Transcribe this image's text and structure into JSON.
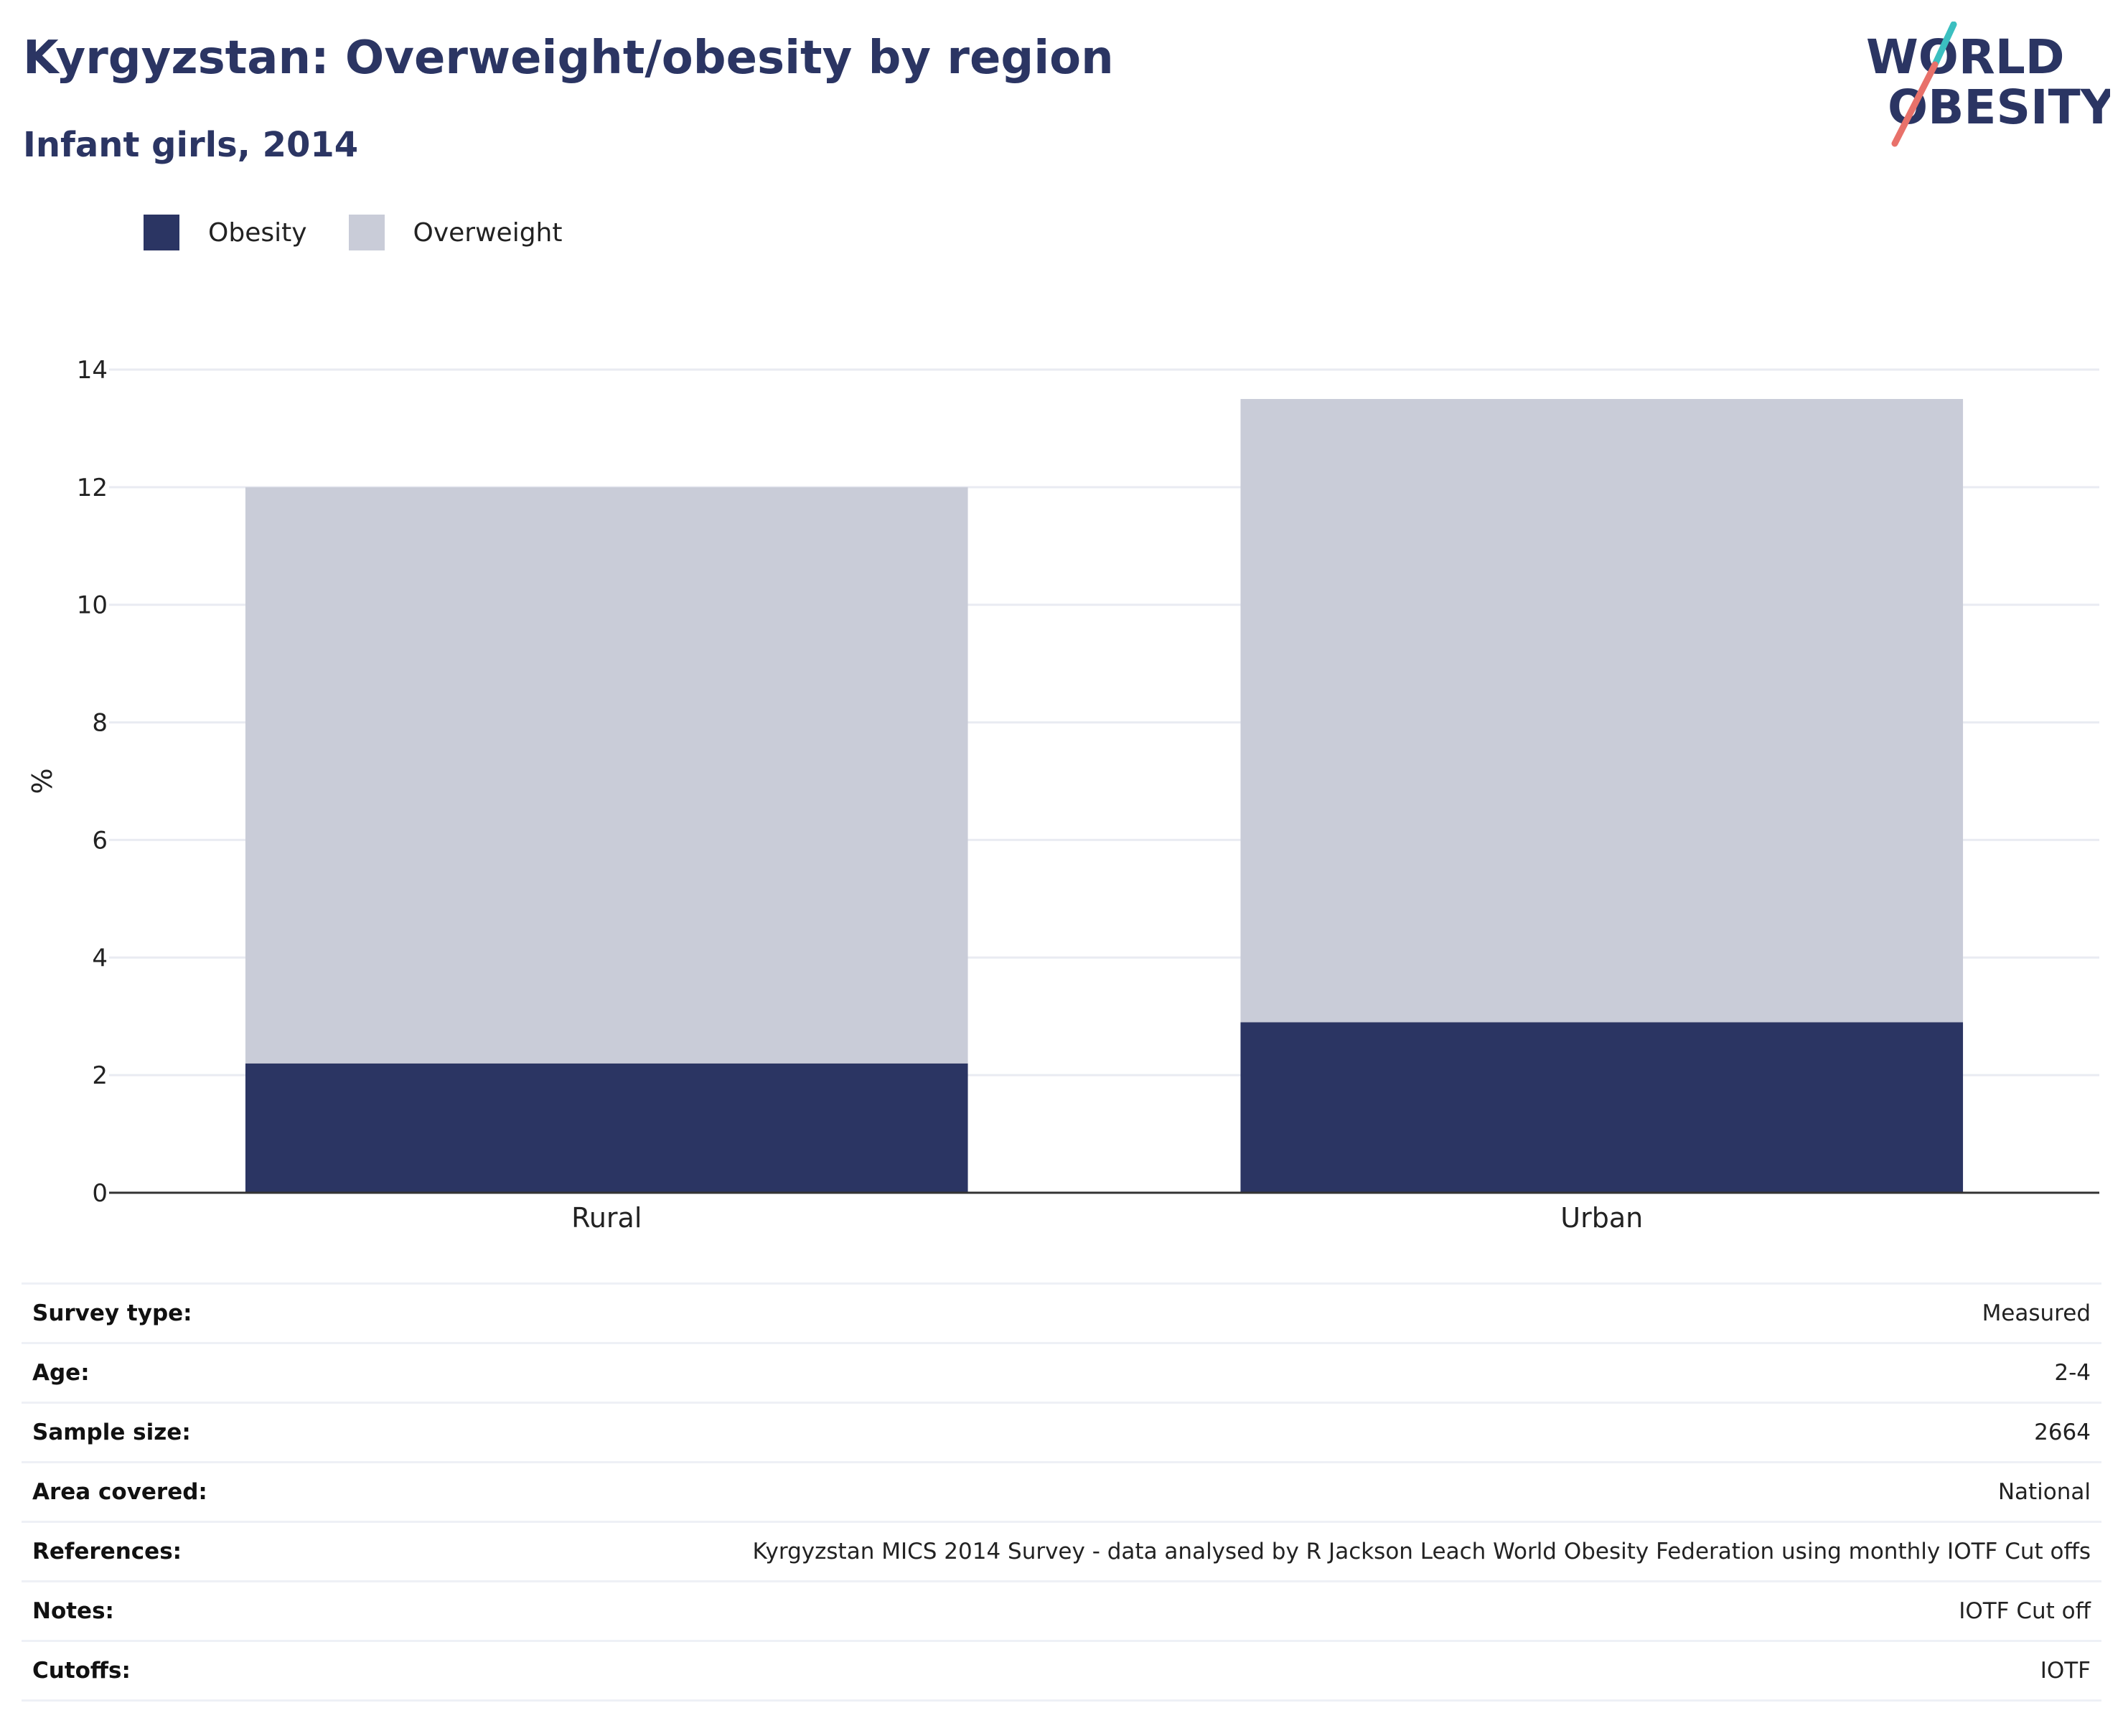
{
  "header": {
    "title": "Kyrgyzstan: Overweight/obesity by region",
    "subtitle": "Infant girls, 2014"
  },
  "logo": {
    "line1": "WORLD",
    "line2": "OBESITY",
    "text_color": "#2b3563",
    "slash_top_color": "#3bbfc0",
    "slash_bottom_color": "#e8716a"
  },
  "legend": [
    {
      "label": "Obesity",
      "color": "#2b3563"
    },
    {
      "label": "Overweight",
      "color": "#c9ccd8"
    }
  ],
  "chart_data": {
    "type": "bar",
    "stacked": true,
    "categories": [
      "Rural",
      "Urban"
    ],
    "series": [
      {
        "name": "Obesity",
        "color": "#2b3563",
        "values": [
          2.2,
          2.9
        ]
      },
      {
        "name": "Overweight",
        "color": "#c9ccd8",
        "values": [
          9.8,
          10.6
        ]
      }
    ],
    "ylabel": "%",
    "xlabel": "",
    "ylim": [
      0,
      14
    ],
    "yticks": [
      0,
      2,
      4,
      6,
      8,
      10,
      12,
      14
    ],
    "grid": true,
    "legend_position": "top-left"
  },
  "info": [
    {
      "label": "Survey type:",
      "value": "Measured"
    },
    {
      "label": "Age:",
      "value": "2-4"
    },
    {
      "label": "Sample size:",
      "value": "2664"
    },
    {
      "label": "Area covered:",
      "value": "National"
    },
    {
      "label": "References:",
      "value": "Kyrgyzstan MICS 2014 Survey - data analysed by R Jackson Leach World Obesity Federation using monthly IOTF Cut offs"
    },
    {
      "label": "Notes:",
      "value": "IOTF Cut off"
    },
    {
      "label": "Cutoffs:",
      "value": "IOTF"
    }
  ]
}
